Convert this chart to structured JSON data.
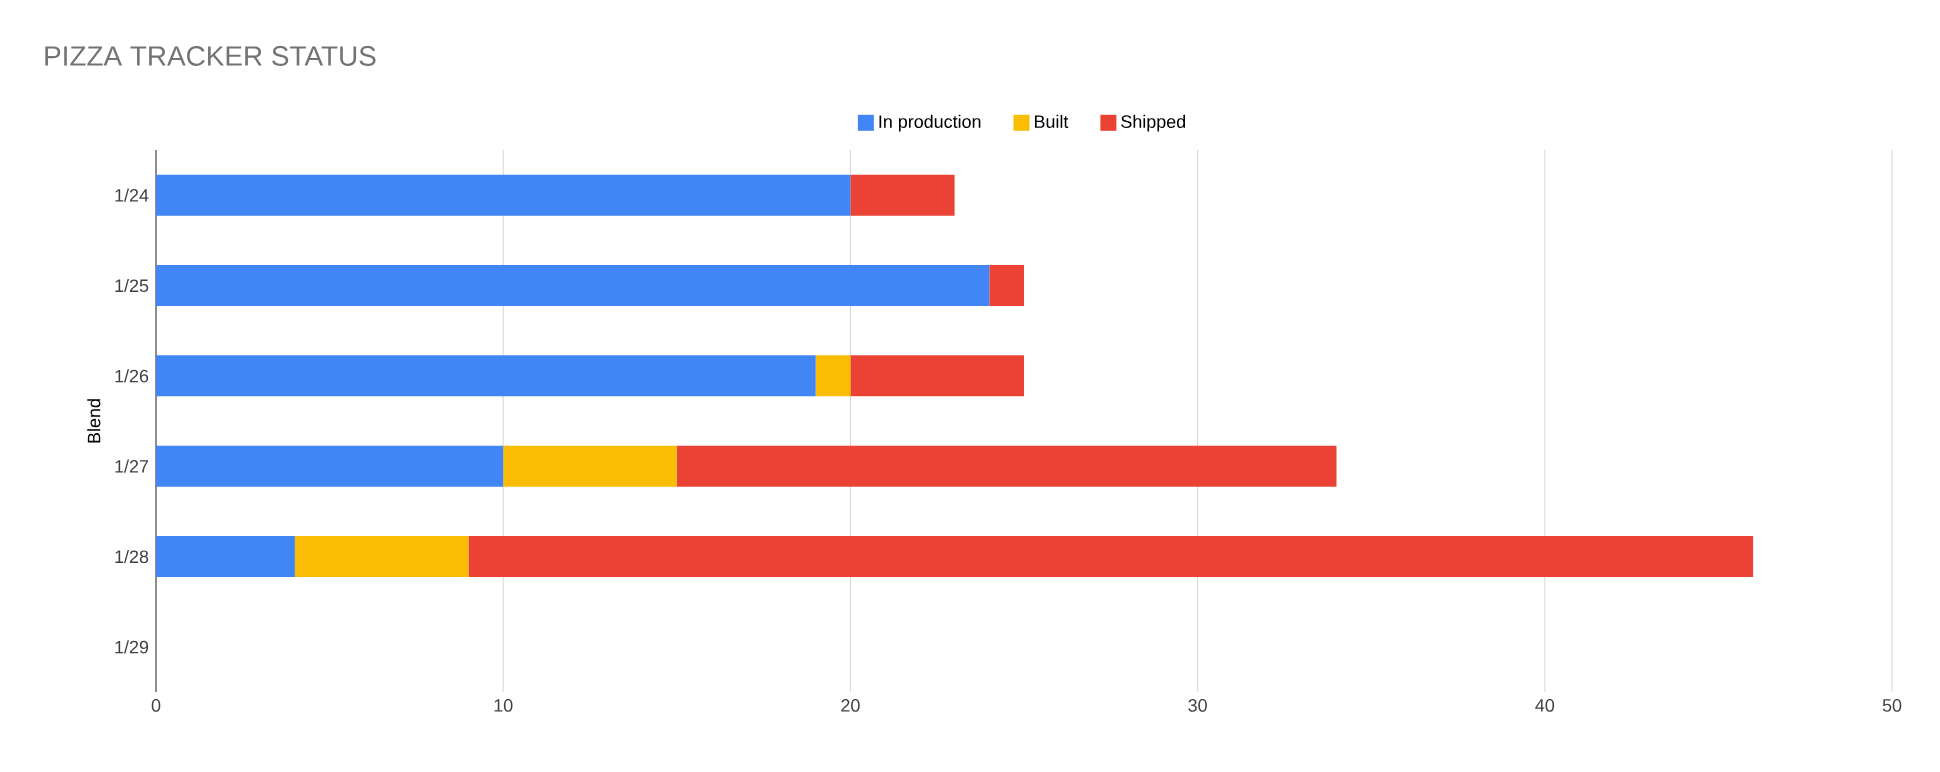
{
  "chart_data": {
    "type": "bar",
    "orientation": "horizontal",
    "stacked": true,
    "title": "PIZZA TRACKER STATUS",
    "ylabel": "Blend",
    "categories": [
      "1/24",
      "1/25",
      "1/26",
      "1/27",
      "1/28",
      "1/29"
    ],
    "series": [
      {
        "name": "In production",
        "color": "#4285f4",
        "values": [
          20,
          24,
          19,
          10,
          4,
          null
        ]
      },
      {
        "name": "Built",
        "color": "#fbbc04",
        "values": [
          0,
          0,
          1,
          5,
          5,
          null
        ]
      },
      {
        "name": "Shipped",
        "color": "#ea4335",
        "values": [
          3,
          1,
          5,
          19,
          37,
          null
        ]
      }
    ],
    "xlim": [
      0,
      50
    ],
    "xticks": [
      0,
      10,
      20,
      30,
      40,
      50
    ],
    "grid": "x",
    "legend": "top"
  }
}
